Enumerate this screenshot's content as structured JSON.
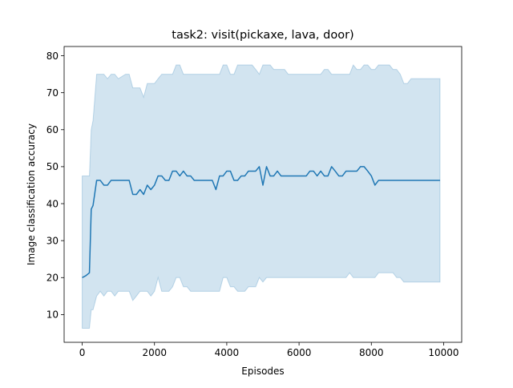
{
  "chart_data": {
    "type": "line",
    "title": "task2: visit(pickaxe, lava, door)",
    "xlabel": "Episodes",
    "ylabel": "Image classification accuracy",
    "xlim": [
      -500,
      10500
    ],
    "ylim": [
      2.5,
      82.5
    ],
    "xticks": [
      0,
      2000,
      4000,
      6000,
      8000,
      10000
    ],
    "yticks": [
      10,
      20,
      30,
      40,
      50,
      60,
      70,
      80
    ],
    "grid": false,
    "legend": "none",
    "colors": {
      "line": "#1f77b4",
      "band": "#1f77b4",
      "band_opacity": 0.2
    },
    "series": [
      {
        "x": [
          0,
          100,
          200,
          250,
          300,
          400,
          500,
          600,
          700,
          800,
          900,
          1000,
          1200,
          1300,
          1400,
          1500,
          1600,
          1700,
          1800,
          1900,
          2000,
          2100,
          2200,
          2300,
          2400,
          2500,
          2600,
          2700,
          2800,
          2900,
          3000,
          3100,
          3200,
          3300,
          3400,
          3500,
          3600,
          3700,
          3800,
          3900,
          4000,
          4100,
          4200,
          4300,
          4400,
          4500,
          4600,
          4700,
          4800,
          4900,
          5000,
          5100,
          5200,
          5300,
          5400,
          5500,
          5600,
          5700,
          5800,
          5900,
          6000,
          6100,
          6200,
          6300,
          6400,
          6500,
          6600,
          6700,
          6800,
          6900,
          7000,
          7100,
          7200,
          7300,
          7400,
          7500,
          7600,
          7700,
          7800,
          7900,
          8000,
          8100,
          8200,
          8300,
          8400,
          8500,
          8600,
          8700,
          8800,
          8900,
          9000,
          9100,
          9200,
          9300,
          9400,
          9500,
          9600,
          9700,
          9800,
          9900
        ],
        "y": [
          20,
          20.5,
          21.3,
          38.5,
          39.5,
          46.3,
          46.3,
          45,
          45,
          46.3,
          46.3,
          46.3,
          46.3,
          46.3,
          42.5,
          42.5,
          43.8,
          42.5,
          45,
          43.8,
          45,
          47.5,
          47.5,
          46.3,
          46.3,
          48.8,
          48.8,
          47.5,
          48.8,
          47.5,
          47.5,
          46.3,
          46.3,
          46.3,
          46.3,
          46.3,
          46.3,
          43.8,
          47.5,
          47.5,
          48.8,
          48.8,
          46.3,
          46.3,
          47.5,
          47.5,
          48.8,
          48.8,
          48.8,
          50,
          45,
          50,
          47.5,
          47.5,
          48.8,
          47.5,
          47.5,
          47.5,
          47.5,
          47.5,
          47.5,
          47.5,
          47.5,
          48.8,
          48.8,
          47.5,
          48.8,
          47.5,
          47.5,
          50,
          48.8,
          47.5,
          47.5,
          48.8,
          48.8,
          48.8,
          48.8,
          50,
          50,
          48.8,
          47.5,
          45,
          46.3,
          46.3,
          46.3,
          46.3,
          46.3,
          46.3,
          46.3,
          46.3,
          46.3,
          46.3,
          46.3,
          46.3,
          46.3,
          46.3,
          46.3,
          46.3,
          46.3,
          46.3
        ],
        "lower": [
          6.3,
          6.3,
          6.3,
          11.3,
          11.3,
          15,
          16.3,
          15,
          16.3,
          16.3,
          15,
          16.3,
          16.3,
          16.3,
          13.8,
          15,
          16.3,
          16.3,
          16.3,
          15,
          16.3,
          20,
          16.3,
          16.3,
          16.3,
          17.5,
          20,
          20,
          17.5,
          17.5,
          16.3,
          16.3,
          16.3,
          16.3,
          16.3,
          16.3,
          16.3,
          16.3,
          16.3,
          20,
          20,
          17.5,
          17.5,
          16.3,
          16.3,
          16.3,
          17.5,
          17.5,
          17.5,
          20,
          18.8,
          20,
          20,
          20,
          20,
          20,
          20,
          20,
          20,
          20,
          20,
          20,
          20,
          20,
          20,
          20,
          20,
          20,
          20,
          20,
          20,
          20,
          20,
          20,
          21.3,
          20,
          20,
          20,
          20,
          20,
          20,
          20,
          21.3,
          21.3,
          21.3,
          21.3,
          21.3,
          20,
          20,
          18.8,
          18.8,
          18.8,
          18.8,
          18.8,
          18.8,
          18.8,
          18.8,
          18.8,
          18.8,
          18.8
        ],
        "upper": [
          47.5,
          47.5,
          47.5,
          60,
          62.5,
          75,
          75,
          75,
          73.8,
          75,
          75,
          73.8,
          75,
          75,
          71.3,
          71.3,
          71.3,
          68.8,
          72.5,
          72.5,
          72.5,
          73.8,
          75,
          75,
          75,
          75,
          77.5,
          77.5,
          75,
          75,
          75,
          75,
          75,
          75,
          75,
          75,
          75,
          75,
          75,
          77.5,
          77.5,
          75,
          75,
          77.5,
          77.5,
          77.5,
          77.5,
          77.5,
          76.3,
          75,
          77.5,
          77.5,
          77.5,
          76.3,
          76.3,
          76.3,
          76.3,
          75,
          75,
          75,
          75,
          75,
          75,
          75,
          75,
          75,
          75,
          76.3,
          76.3,
          75,
          75,
          75,
          75,
          75,
          75,
          77.5,
          76.3,
          76.3,
          77.5,
          77.5,
          76.3,
          76.3,
          77.5,
          77.5,
          77.5,
          77.5,
          76.3,
          76.3,
          75,
          72.5,
          72.5,
          73.8,
          73.8,
          73.8,
          73.8,
          73.8,
          73.8,
          73.8,
          73.8,
          73.8
        ]
      }
    ]
  }
}
